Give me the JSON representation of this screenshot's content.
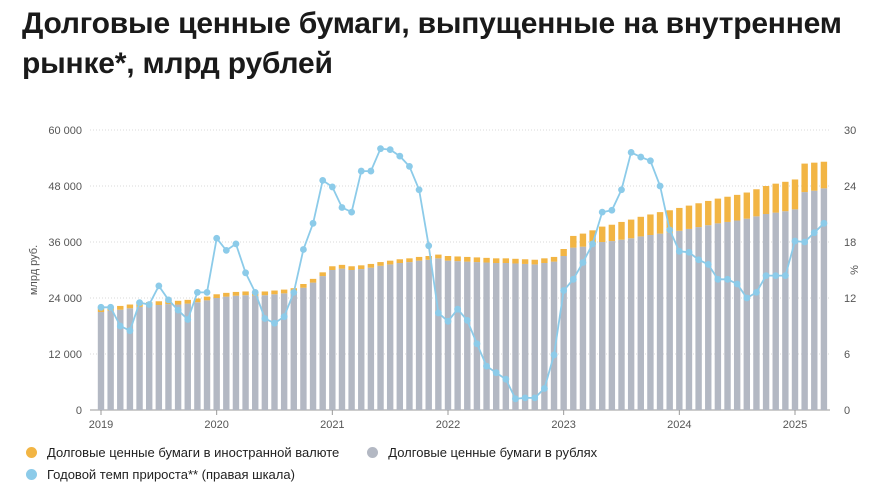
{
  "title": "Долговые ценные бумаги, выпущенные на внутреннем рынке*, млрд рублей",
  "colors": {
    "foreign": "#f2b544",
    "rubles": "#b3b8c3",
    "growth": "#8ccbe9",
    "axis": "#555555",
    "grid": "#d8d8d8"
  },
  "chart_data": {
    "type": "bar",
    "stacked": true,
    "y_left_label": "млрд руб.",
    "y_right_label": "%",
    "ylim_left": [
      0,
      60000
    ],
    "ylim_right": [
      0,
      30
    ],
    "y_left_ticks": [
      "0",
      "12 000",
      "24 000",
      "36 000",
      "48 000",
      "60 000"
    ],
    "y_left_tick_values": [
      0,
      12000,
      24000,
      36000,
      48000,
      60000
    ],
    "y_right_ticks": [
      "0",
      "6",
      "12",
      "18",
      "24",
      "30"
    ],
    "y_right_tick_values": [
      0,
      6,
      12,
      18,
      24,
      30
    ],
    "x_ticks": [
      "2019",
      "2020",
      "2021",
      "2022",
      "2023",
      "2024",
      "2025"
    ],
    "x_tick_month_index": [
      0,
      12,
      24,
      36,
      48,
      60,
      72
    ],
    "x_range_months": [
      0,
      76
    ],
    "series": [
      {
        "name": "Долговые ценные бумаги в рублях",
        "values": [
          21000,
          21300,
          21500,
          21800,
          22100,
          22300,
          22500,
          22700,
          22600,
          22800,
          23100,
          23500,
          24000,
          24300,
          24500,
          24600,
          24500,
          24600,
          24800,
          25000,
          25300,
          26200,
          27300,
          28700,
          30000,
          30300,
          30000,
          30200,
          30500,
          30900,
          31200,
          31500,
          31700,
          32000,
          32200,
          32500,
          32000,
          31900,
          31800,
          31700,
          31600,
          31500,
          31500,
          31400,
          31300,
          31200,
          31500,
          31800,
          33000,
          34800,
          35000,
          35500,
          36000,
          36200,
          36500,
          36800,
          37200,
          37500,
          37800,
          38000,
          38400,
          38800,
          39200,
          39600,
          40000,
          40300,
          40600,
          41000,
          41500,
          42000,
          42300,
          42600,
          43000,
          46700,
          47000,
          47500
        ]
      },
      {
        "name": "Долговые ценные бумаги в иностранной валюте",
        "values": [
          800,
          800,
          800,
          800,
          800,
          800,
          800,
          800,
          800,
          800,
          800,
          800,
          800,
          800,
          800,
          800,
          800,
          800,
          800,
          800,
          800,
          800,
          800,
          800,
          800,
          800,
          800,
          800,
          800,
          800,
          800,
          800,
          800,
          800,
          800,
          800,
          1000,
          1000,
          1000,
          1000,
          1000,
          1000,
          1000,
          1000,
          1000,
          1000,
          1000,
          1000,
          1500,
          2500,
          2800,
          3000,
          3300,
          3500,
          3800,
          4000,
          4200,
          4400,
          4600,
          4800,
          4900,
          5000,
          5100,
          5200,
          5300,
          5400,
          5500,
          5600,
          5800,
          6000,
          6200,
          6300,
          6400,
          6100,
          6000,
          5700
        ]
      },
      {
        "name": "Годовой темп прироста** (правая шкала)",
        "axis": "right",
        "values": [
          11.0,
          11.0,
          9.0,
          8.5,
          11.5,
          11.3,
          13.3,
          11.8,
          10.7,
          9.7,
          12.6,
          12.6,
          18.4,
          17.1,
          17.8,
          14.7,
          12.6,
          9.8,
          9.3,
          10.0,
          12.6,
          17.2,
          20.0,
          24.6,
          23.9,
          21.7,
          21.2,
          25.6,
          25.6,
          28.0,
          27.9,
          27.2,
          26.1,
          23.6,
          17.6,
          10.4,
          9.5,
          10.8,
          9.6,
          7.1,
          4.7,
          4.0,
          3.3,
          1.2,
          1.3,
          1.3,
          2.3,
          5.9,
          12.8,
          14.0,
          15.8,
          17.8,
          21.2,
          21.4,
          23.6,
          27.6,
          27.1,
          26.7,
          24.0,
          19.3,
          17.0,
          16.9,
          16.1,
          15.6,
          14.0,
          14.0,
          13.5,
          12.0,
          12.6,
          14.4,
          14.4,
          14.4,
          18.1,
          18.0,
          19.0,
          20.0
        ]
      }
    ]
  },
  "legend": {
    "foreign": "Долговые ценные бумаги в иностранной валюте",
    "rubles": "Долговые ценные бумаги в рублях",
    "growth": "Годовой темп прироста** (правая шкала)"
  }
}
